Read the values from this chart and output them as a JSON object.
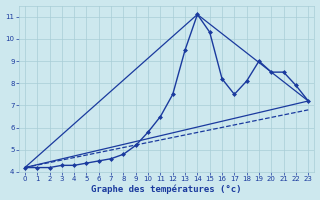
{
  "xlabel": "Graphe des températures (°c)",
  "xlim": [
    -0.5,
    23.5
  ],
  "ylim": [
    4,
    11.5
  ],
  "yticks": [
    4,
    5,
    6,
    7,
    8,
    9,
    10,
    11
  ],
  "xticks": [
    0,
    1,
    2,
    3,
    4,
    5,
    6,
    7,
    8,
    9,
    10,
    11,
    12,
    13,
    14,
    15,
    16,
    17,
    18,
    19,
    20,
    21,
    22,
    23
  ],
  "background_color": "#cde8ee",
  "grid_color": "#a8cdd6",
  "line_color": "#1a3a9e",
  "series": [
    {
      "x": [
        0,
        1,
        2,
        3,
        4,
        5,
        6,
        7,
        8,
        9,
        10,
        11,
        12,
        13,
        14,
        15,
        16,
        17,
        18,
        19,
        20,
        21,
        22,
        23
      ],
      "y": [
        4.2,
        4.2,
        4.2,
        4.3,
        4.3,
        4.4,
        4.5,
        4.6,
        4.8,
        5.2,
        5.8,
        6.5,
        7.5,
        9.5,
        11.1,
        10.3,
        8.2,
        7.5,
        8.1,
        9.0,
        8.5,
        8.5,
        7.9,
        7.2
      ],
      "marker": "D",
      "markersize": 2.0,
      "linewidth": 1.0,
      "linestyle": "-"
    },
    {
      "x": [
        0,
        14,
        23
      ],
      "y": [
        4.2,
        11.1,
        7.2
      ],
      "marker": null,
      "markersize": 0,
      "linewidth": 0.9,
      "linestyle": "-"
    },
    {
      "x": [
        0,
        23
      ],
      "y": [
        4.2,
        7.2
      ],
      "marker": null,
      "markersize": 0,
      "linewidth": 0.9,
      "linestyle": "-"
    },
    {
      "x": [
        0,
        23
      ],
      "y": [
        4.2,
        6.8
      ],
      "marker": null,
      "markersize": 0,
      "linewidth": 0.9,
      "linestyle": "--"
    }
  ]
}
